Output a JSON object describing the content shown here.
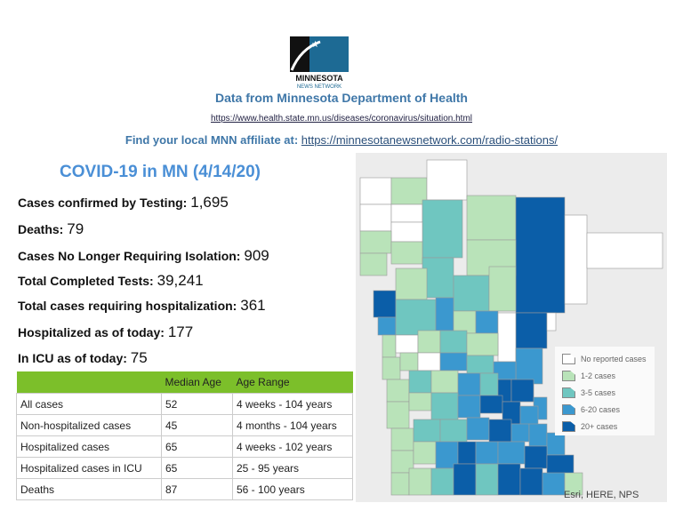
{
  "logo": {
    "text": "MNN",
    "line1": "MINNESOTA",
    "line2": "NEWS NETWORK"
  },
  "header": {
    "source": "Data from Minnesota Department of Health",
    "source_url": "https://www.health.state.mn.us/diseases/coronavirus/situation.html",
    "affiliate_label": "Find your local MNN affiliate at: ",
    "affiliate_url": "https://minnesotanewsnetwork.com/radio-stations/"
  },
  "title": "COVID-19 in MN (4/14/20)",
  "stats": [
    {
      "label": "Cases confirmed by Testing: ",
      "value": "1,695"
    },
    {
      "label": "Deaths: ",
      "value": "79"
    },
    {
      "label": "Cases No Longer Requiring Isolation: ",
      "value": "909"
    },
    {
      "label": "Total Completed Tests: ",
      "value": "39,241"
    },
    {
      "label": "Total cases requiring hospitalization: ",
      "value": "361"
    },
    {
      "label": "Hospitalized as of today: ",
      "value": "177"
    },
    {
      "label": "In ICU as of today: ",
      "value": "75"
    }
  ],
  "table": {
    "headers": [
      "",
      "Median Age",
      "Age Range"
    ],
    "rows": [
      [
        "All cases",
        "52",
        "4 weeks - 104 years"
      ],
      [
        "Non-hospitalized cases",
        "45",
        "4 months - 104 years"
      ],
      [
        "Hospitalized cases",
        "65",
        "4 weeks - 102 years"
      ],
      [
        "Hospitalized cases in ICU",
        "65",
        "25 - 95 years"
      ],
      [
        "Deaths",
        "87",
        "56 - 100 years"
      ]
    ]
  },
  "map": {
    "legend": [
      {
        "label": "No reported cases",
        "color": "#ffffff"
      },
      {
        "label": "1-2 cases",
        "color": "#b9e3b9"
      },
      {
        "label": "3-5 cases",
        "color": "#6fc6c0"
      },
      {
        "label": "6-20 cases",
        "color": "#3b98cf"
      },
      {
        "label": "20+ cases",
        "color": "#0b5ea8"
      }
    ],
    "attribution": "Esri, HERE, NPS"
  }
}
